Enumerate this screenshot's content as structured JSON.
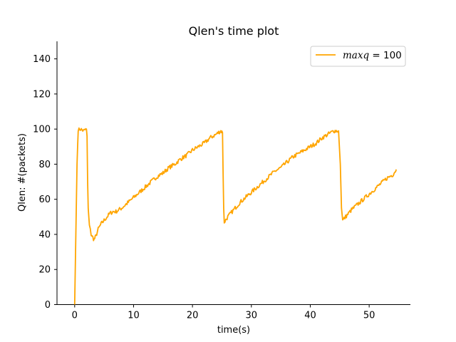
{
  "chart_data": {
    "type": "line",
    "title": "Qlen's time plot",
    "xlabel": "time(s)",
    "ylabel": "Qlen: #(packets)",
    "xlim": [
      -3,
      57
    ],
    "ylim": [
      0,
      150
    ],
    "xticks": [
      0,
      10,
      20,
      30,
      40,
      50
    ],
    "yticks": [
      0,
      20,
      40,
      60,
      80,
      100,
      120,
      140
    ],
    "grid": false,
    "legend": {
      "placement": "upper-right",
      "var": "maxq",
      "eq": " = 100"
    },
    "color": "#ffa500",
    "series": [
      {
        "name": "maxq = 100",
        "x": [
          0,
          0.2,
          0.4,
          0.6,
          1.0,
          1.5,
          2.0,
          2.1,
          2.2,
          2.3,
          2.5,
          2.8,
          3.1,
          3.3,
          3.6,
          4.0,
          4.5,
          5.0,
          5.5,
          6.0,
          6.5,
          7.0,
          8.0,
          9.0,
          10.0,
          11.0,
          12.0,
          13.0,
          14.0,
          15.0,
          16.0,
          17.0,
          18.0,
          19.0,
          20.0,
          21.0,
          22.0,
          23.0,
          24.0,
          24.8,
          25.1,
          25.2,
          25.3,
          25.4,
          26.0,
          27.0,
          28.0,
          29.0,
          30.0,
          31.0,
          32.0,
          33.0,
          34.0,
          35.0,
          36.0,
          37.0,
          38.0,
          39.0,
          40.0,
          41.0,
          42.0,
          43.0,
          44.0,
          44.8,
          45.1,
          45.3,
          45.5,
          46.0,
          47.0,
          48.0,
          49.0,
          50.0,
          51.0,
          52.0,
          53.0,
          54.0,
          54.6
        ],
        "y": [
          0,
          40,
          80,
          100,
          100,
          99,
          100,
          96,
          70,
          55,
          45,
          40,
          38,
          37,
          39,
          43,
          46,
          48,
          50,
          52,
          53,
          53,
          55,
          58,
          61,
          64,
          67,
          70,
          73,
          75,
          78,
          80,
          83,
          85,
          88,
          90,
          92,
          95,
          97,
          99,
          98,
          75,
          55,
          47,
          50,
          54,
          58,
          61,
          64,
          67,
          70,
          73,
          76,
          78,
          81,
          84,
          86,
          88,
          90,
          92,
          95,
          97,
          99,
          99,
          80,
          55,
          48,
          50,
          54,
          57,
          60,
          63,
          66,
          69,
          72,
          74,
          77
        ]
      }
    ]
  }
}
